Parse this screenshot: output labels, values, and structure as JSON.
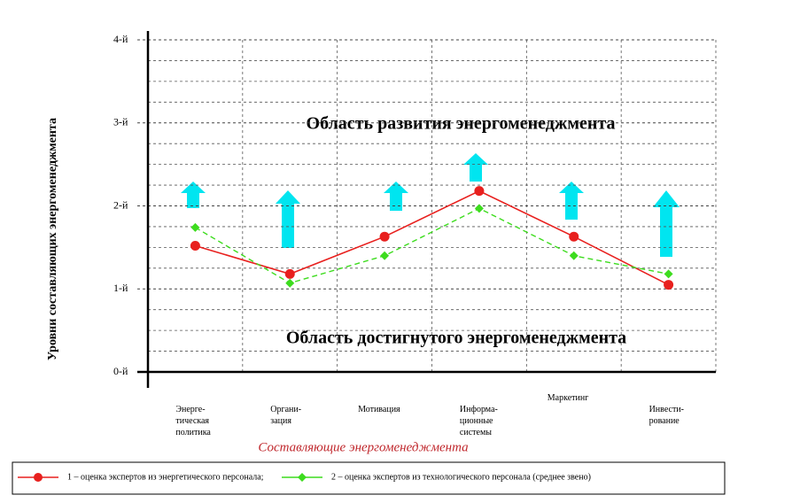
{
  "chart_data": {
    "type": "line",
    "y_label": "Уровни составляющих энергоменеджмента",
    "x_label": "Составляющие энергоменеджмента",
    "annotations": [
      "Область развития энергоменеджмента",
      "Область достигнутого энергоменеджмента"
    ],
    "categories": [
      "Энерге-\nтическая\nполитика",
      "Органи-\nзация",
      "Мотивация",
      "Информа-\nционные\nсистемы",
      "Маркетинг",
      "Инвести-\nрование"
    ],
    "series": [
      {
        "name": "1 – оценка экспертов из энергетического персонала;",
        "color": "#e8201e",
        "values": [
          1.52,
          1.18,
          1.63,
          2.18,
          1.63,
          1.05
        ]
      },
      {
        "name": "2 – оценка экспертов из технологического персонала (среднее звено)",
        "color": "#3ddc1e",
        "values": [
          1.74,
          1.07,
          1.4,
          1.97,
          1.4,
          1.18
        ]
      }
    ],
    "ylim": [
      0,
      4
    ],
    "yticks": [
      {
        "value": 0,
        "label": "0-й"
      },
      {
        "value": 1,
        "label": "1-й"
      },
      {
        "value": 2,
        "label": "2-й"
      },
      {
        "value": 3,
        "label": "3-й"
      },
      {
        "value": 4,
        "label": "4-й"
      }
    ],
    "minor_yticks": [
      0.25,
      0.5,
      0.75,
      1.25,
      1.5,
      1.75,
      2.25,
      2.5,
      2.75,
      3.25,
      3.5,
      3.75
    ],
    "grid": true
  }
}
